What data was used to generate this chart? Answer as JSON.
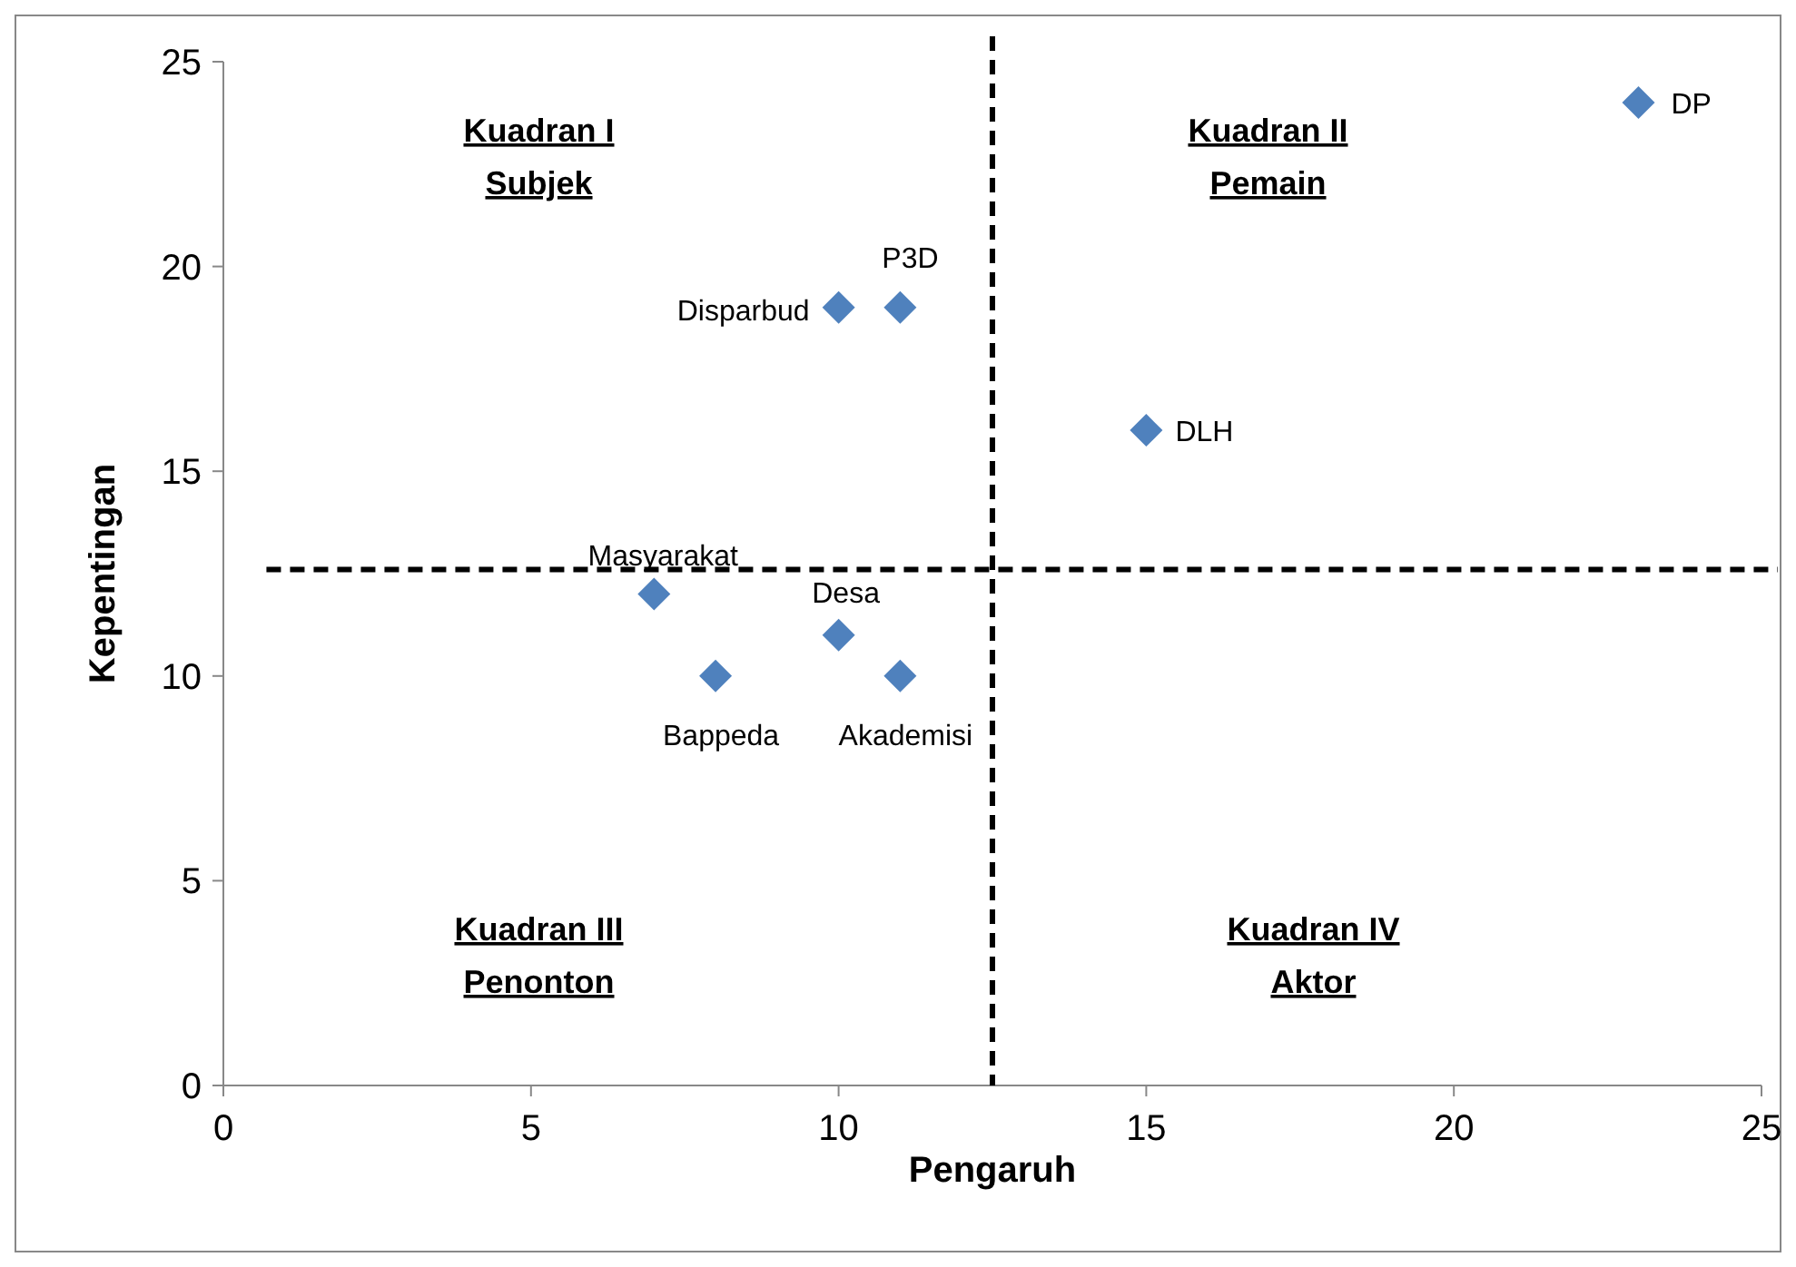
{
  "chart_data": {
    "type": "scatter",
    "xlabel": "Pengaruh",
    "ylabel": "Kepentingan",
    "x": [
      7,
      8,
      10,
      11,
      10,
      11,
      15,
      23
    ],
    "series": [
      {
        "color": "#4f81bd",
        "values": [
          12,
          10,
          11,
          10,
          19,
          19,
          16,
          24
        ]
      }
    ],
    "xlim": [
      0,
      25
    ],
    "ylim": [
      0,
      25
    ],
    "xticks": [
      0,
      5,
      10,
      15,
      20,
      25
    ],
    "yticks": [
      0,
      5,
      10,
      15,
      20,
      25
    ],
    "marker": "diamond",
    "grid": false,
    "ref_lines": [
      {
        "axis": "x",
        "value": 12.5,
        "line_style": "dashed",
        "color": "#000000"
      },
      {
        "axis": "y",
        "value": 12.6,
        "line_style": "dashed",
        "color": "#000000"
      }
    ],
    "annotations": [
      "Kuadran I\nSubjek",
      "Kuadran II\nPemain",
      "Kuadran III\nPenonton",
      "Kuadran IV\nAktor",
      {
        "text": "Masyarakat",
        "x": 7,
        "y": 12
      },
      {
        "text": "Bappeda",
        "x": 8,
        "y": 10
      },
      {
        "text": "Desa",
        "x": 10,
        "y": 11
      },
      {
        "text": "Akademisi",
        "x": 11,
        "y": 10
      },
      {
        "text": "Disparbud",
        "x": 10,
        "y": 19
      },
      {
        "text": "P3D",
        "x": 11,
        "y": 19
      },
      {
        "text": "DLH",
        "x": 15,
        "y": 16
      },
      {
        "text": "DP",
        "x": 23,
        "y": 24
      }
    ]
  }
}
